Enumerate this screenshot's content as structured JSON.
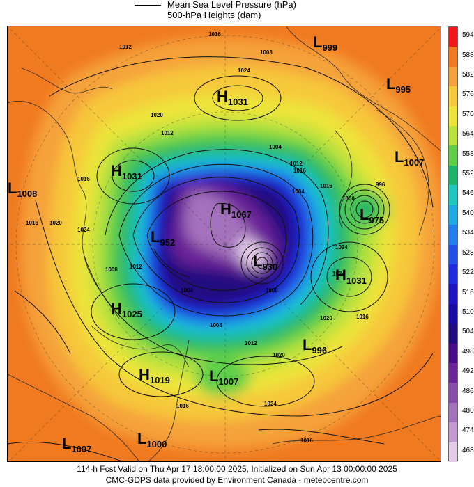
{
  "legend": {
    "mslp_label": "Mean Sea Level Pressure (hPa)",
    "heights_label": "500-hPa Heights (dam)"
  },
  "colors": {
    "ocean_bg": "#f07a20",
    "land_line": "#222222",
    "contour": "#111111"
  },
  "color_scale": [
    {
      "value": "594",
      "color": "#f01818"
    },
    {
      "value": "588",
      "color": "#f27a1e"
    },
    {
      "value": "582",
      "color": "#f5a23a"
    },
    {
      "value": "576",
      "color": "#f6c83a"
    },
    {
      "value": "570",
      "color": "#ede43a"
    },
    {
      "value": "564",
      "color": "#b9e23c"
    },
    {
      "value": "558",
      "color": "#5fcf4a"
    },
    {
      "value": "552",
      "color": "#1fb46b"
    },
    {
      "value": "546",
      "color": "#1ec8c0"
    },
    {
      "value": "540",
      "color": "#1ea8e6"
    },
    {
      "value": "534",
      "color": "#2080f0"
    },
    {
      "value": "528",
      "color": "#2050e8"
    },
    {
      "value": "522",
      "color": "#1e2ae0"
    },
    {
      "value": "516",
      "color": "#1c14c4"
    },
    {
      "value": "510",
      "color": "#1a0aa4"
    },
    {
      "value": "504",
      "color": "#220a80"
    },
    {
      "value": "498",
      "color": "#4a0a86"
    },
    {
      "value": "492",
      "color": "#6a2498"
    },
    {
      "value": "486",
      "color": "#8a4aac"
    },
    {
      "value": "480",
      "color": "#a472bc"
    },
    {
      "value": "474",
      "color": "#c29ad0"
    },
    {
      "value": "468",
      "color": "#e2cce6"
    }
  ],
  "pressure_centers": [
    {
      "type": "L",
      "value": "999"
    },
    {
      "type": "L",
      "value": "995"
    },
    {
      "type": "H",
      "value": "1031"
    },
    {
      "type": "L",
      "value": "1007"
    },
    {
      "type": "H",
      "value": "1031"
    },
    {
      "type": "L",
      "value": "1008"
    },
    {
      "type": "H",
      "value": "1067"
    },
    {
      "type": "L",
      "value": "975"
    },
    {
      "type": "L",
      "value": "952"
    },
    {
      "type": "L",
      "value": "930"
    },
    {
      "type": "H",
      "value": "1031"
    },
    {
      "type": "H",
      "value": "1025"
    },
    {
      "type": "L",
      "value": "996"
    },
    {
      "type": "H",
      "value": "1019"
    },
    {
      "type": "L",
      "value": "1007"
    },
    {
      "type": "L",
      "value": "1007"
    },
    {
      "type": "L",
      "value": "1000"
    }
  ],
  "isobar_labels": [
    "1016",
    "1012",
    "1008",
    "1024",
    "1020",
    "1012",
    "1004",
    "1016",
    "1020",
    "1016",
    "1024",
    "1012",
    "1016",
    "1000",
    "996",
    "1004",
    "1008",
    "1012",
    "1020",
    "1024",
    "1020",
    "1016",
    "1016",
    "1024",
    "1012",
    "1016",
    "1008",
    "1004",
    "1008",
    "1024",
    "1016"
  ],
  "footer": {
    "line1": "114-h Fcst Valid on Thu Apr 17 18:00:00 2025, Initialized on Sun Apr 13 00:00:00 2025",
    "line2": "CMC-GDPS data provided by Environment Canada - meteocentre.com"
  }
}
